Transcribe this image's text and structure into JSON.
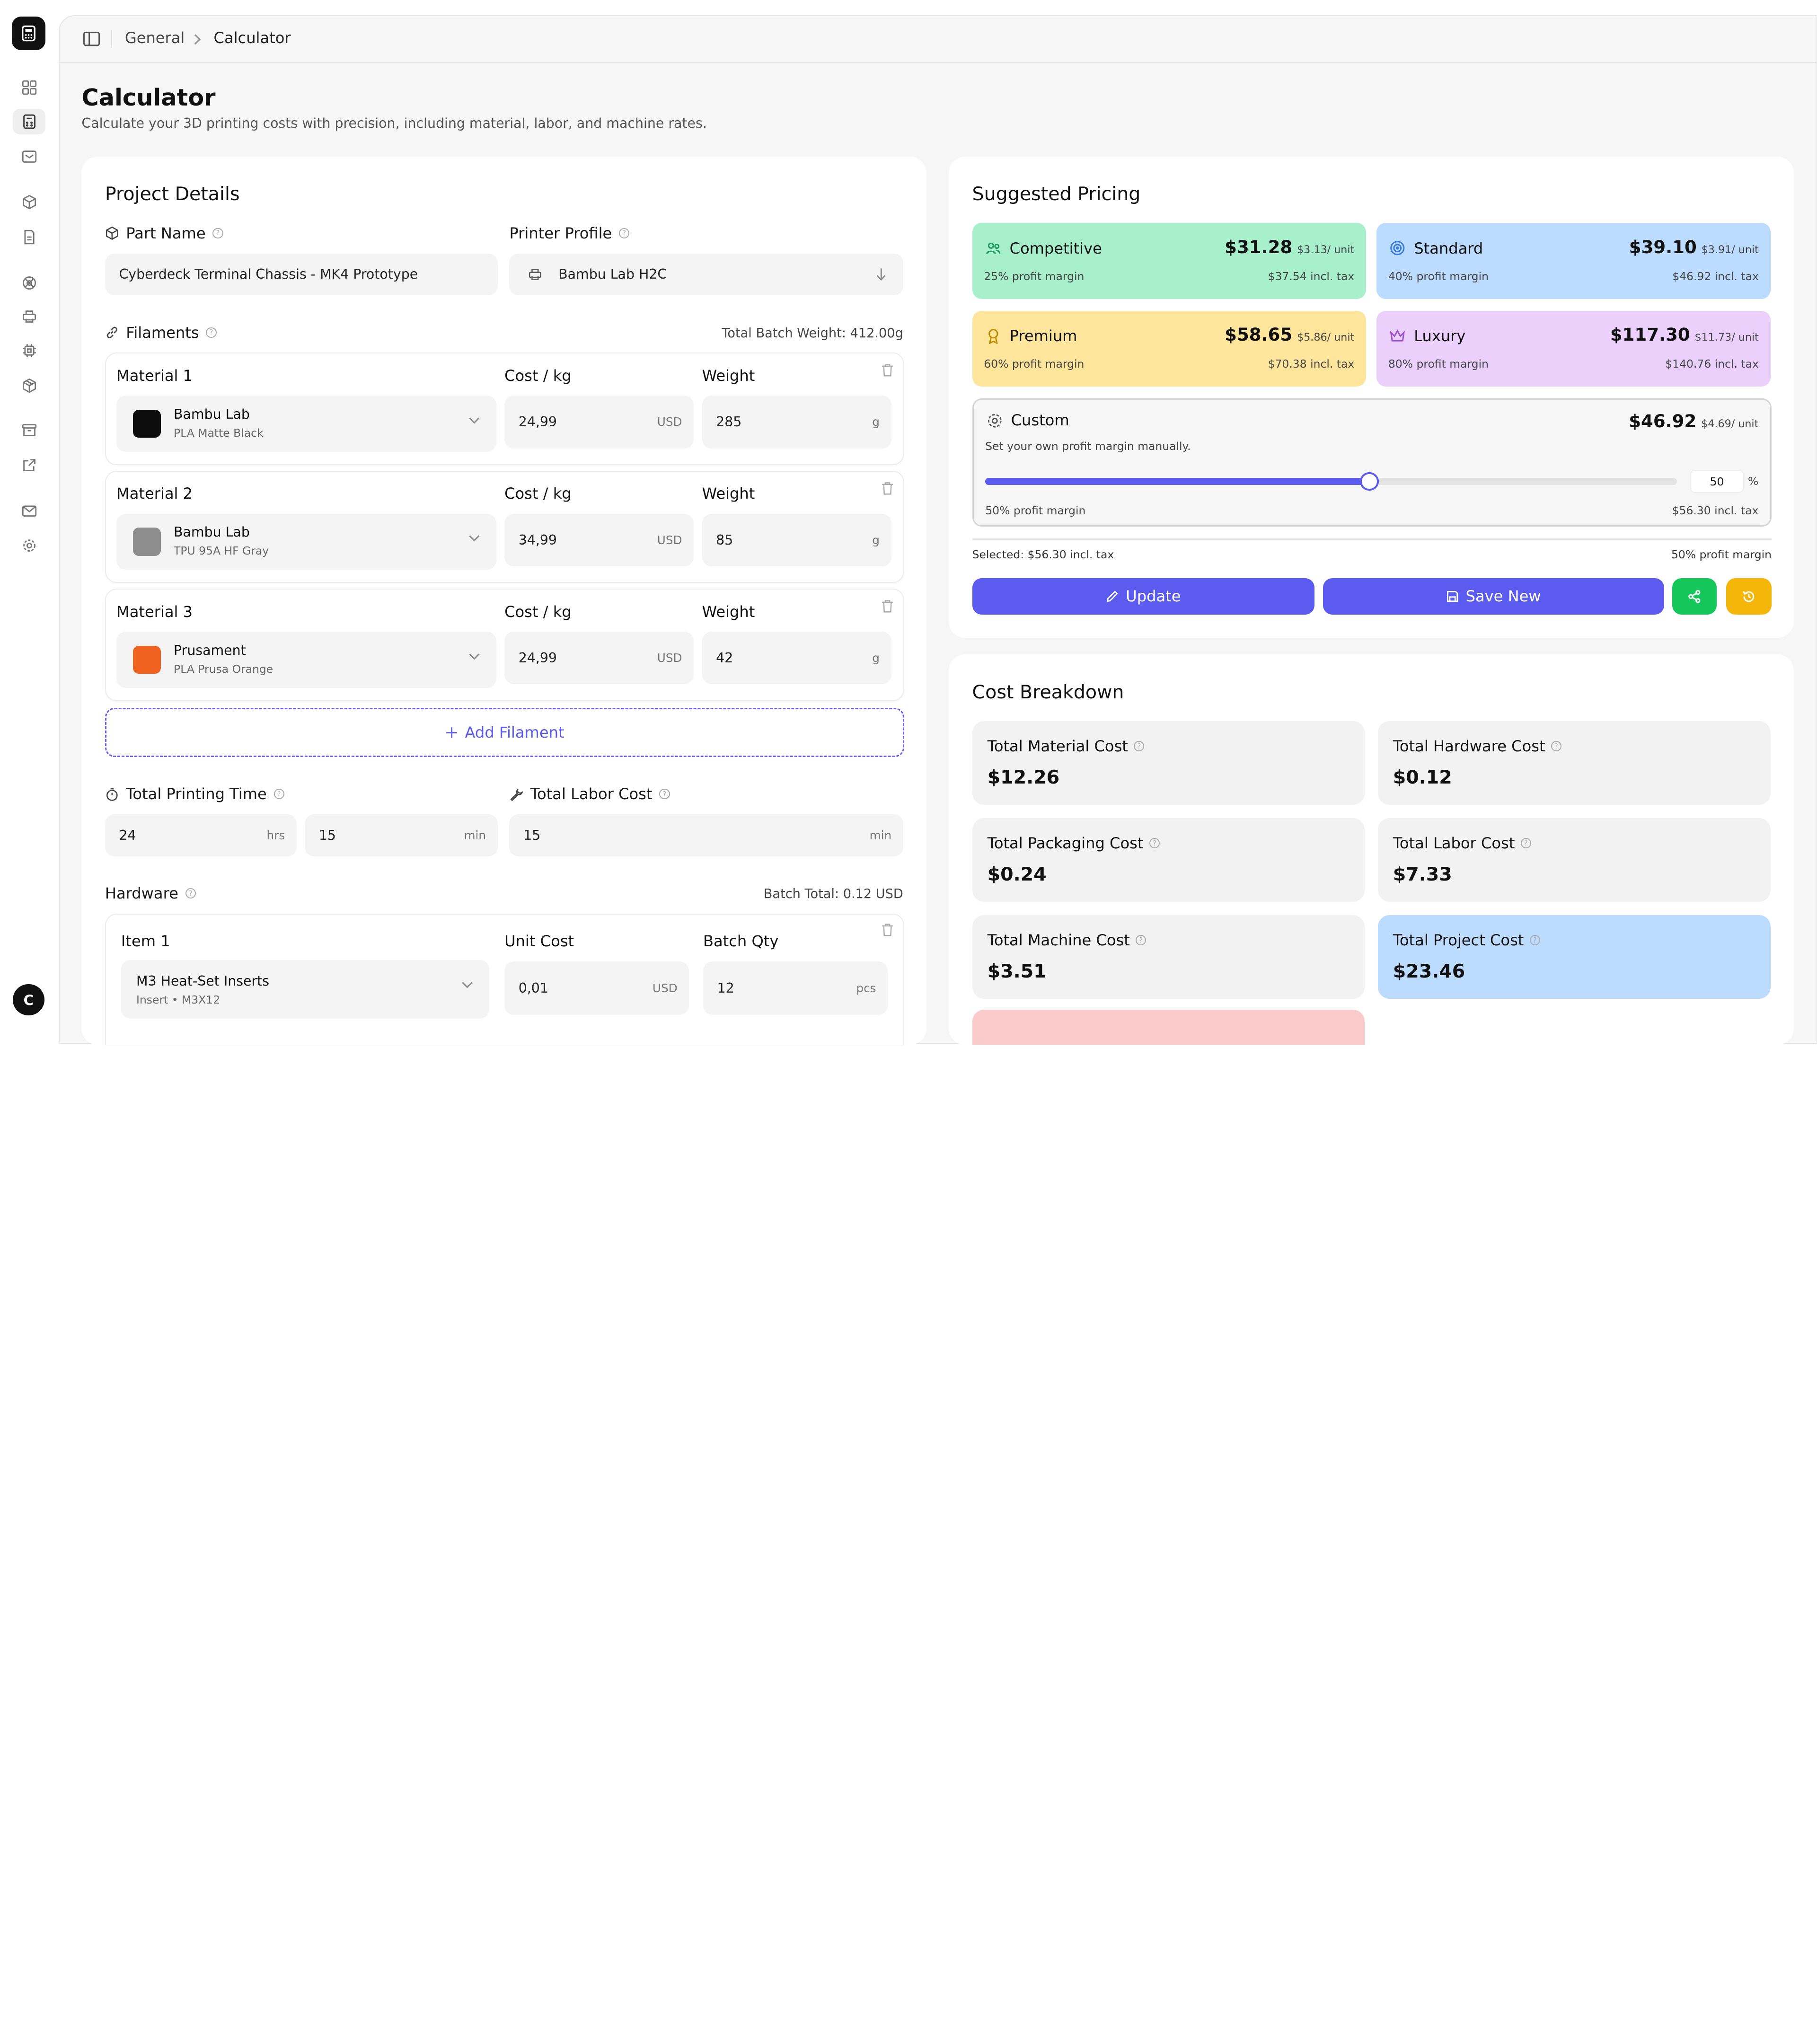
{
  "breadcrumb": {
    "root": "General",
    "current": "Calculator"
  },
  "page": {
    "title": "Calculator",
    "subtitle": "Calculate your 3D printing costs with precision, including material, labor, and machine rates."
  },
  "user": {
    "avatar_initial": "C"
  },
  "project": {
    "title": "Project Details",
    "part_name_label": "Part Name",
    "part_name_value": "Cyberdeck Terminal Chassis - MK4 Prototype",
    "printer_label": "Printer Profile",
    "printer_value": "Bambu Lab H2C",
    "filaments_label": "Filaments",
    "batch_weight": "Total Batch Weight: 412.00g",
    "cost_label": "Cost / kg",
    "weight_label": "Weight",
    "currency": "USD",
    "weight_unit": "g",
    "materials": [
      {
        "label": "Material 1",
        "brand": "Bambu Lab",
        "model": "PLA Matte Black",
        "color": "#0d0d0d",
        "cost": "24,99",
        "weight": "285"
      },
      {
        "label": "Material 2",
        "brand": "Bambu Lab",
        "model": "TPU 95A HF Gray",
        "color": "#8e8e8e",
        "cost": "34,99",
        "weight": "85"
      },
      {
        "label": "Material 3",
        "brand": "Prusament",
        "model": "PLA Prusa Orange",
        "color": "#f0621f",
        "cost": "24,99",
        "weight": "42"
      }
    ],
    "add_filament": "Add Filament",
    "print_time_label": "Total Printing Time",
    "hours": "24",
    "hours_unit": "hrs",
    "minutes": "15",
    "minutes_unit": "min",
    "labor_label": "Total Labor Cost",
    "labor_minutes": "15",
    "labor_unit": "min",
    "hardware_label": "Hardware",
    "hardware_total": "Batch Total: 0.12 USD",
    "hardware_item": {
      "label": "Item 1",
      "unit_cost_label": "Unit Cost",
      "qty_label": "Batch Qty",
      "name": "M3 Heat-Set Inserts",
      "detail": "Insert • M3X12",
      "unit_cost": "0,01",
      "qty": "12",
      "qty_unit": "pcs"
    }
  },
  "pricing": {
    "title": "Suggested Pricing",
    "tiers": [
      {
        "name": "Competitive",
        "price": "$31.28",
        "per_unit": "$3.13/ unit",
        "margin": "25% profit margin",
        "incl_tax": "$37.54 incl. tax",
        "bg": "#a8f0cc",
        "icon": "people-icon"
      },
      {
        "name": "Standard",
        "price": "$39.10",
        "per_unit": "$3.91/ unit",
        "margin": "40% profit margin",
        "incl_tax": "$46.92 incl. tax",
        "bg": "#bcdcff",
        "icon": "target-icon"
      },
      {
        "name": "Premium",
        "price": "$58.65",
        "per_unit": "$5.86/ unit",
        "margin": "60% profit margin",
        "incl_tax": "$70.38 incl. tax",
        "bg": "#fde59b",
        "icon": "award-icon"
      },
      {
        "name": "Luxury",
        "price": "$117.30",
        "per_unit": "$11.73/ unit",
        "margin": "80% profit margin",
        "incl_tax": "$140.76 incl. tax",
        "bg": "#ead0fb",
        "icon": "crown-icon"
      }
    ],
    "custom": {
      "name": "Custom",
      "price": "$46.92",
      "per_unit": "$4.69/ unit",
      "desc": "Set your own profit margin manually.",
      "slider_value": "50",
      "slider_fraction": 0.5,
      "slider_unit": "%",
      "margin": "50% profit margin",
      "incl_tax": "$56.30 incl. tax"
    },
    "selected": "Selected: $56.30 incl. tax",
    "selected_margin": "50% profit margin",
    "update_label": "Update",
    "save_label": "Save New"
  },
  "breakdown": {
    "title": "Cost Breakdown",
    "items": [
      {
        "label": "Total Material Cost",
        "value": "$12.26"
      },
      {
        "label": "Total Hardware Cost",
        "value": "$0.12"
      },
      {
        "label": "Total Packaging Cost",
        "value": "$0.24"
      },
      {
        "label": "Total Labor Cost",
        "value": "$7.33"
      },
      {
        "label": "Total Machine Cost",
        "value": "$3.51"
      },
      {
        "label": "Total Project Cost",
        "value": "$23.46"
      }
    ]
  },
  "colors": {
    "accent": "#5b5bf0",
    "green": "#15c75a",
    "amber": "#f5b60a",
    "project_total_bg": "#bcdcff",
    "partial_card_bg": "#fbcaca"
  }
}
